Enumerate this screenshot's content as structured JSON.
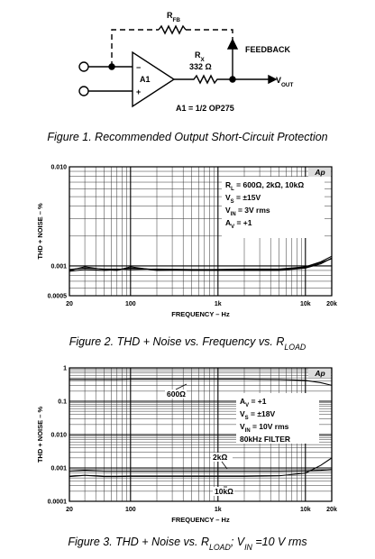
{
  "figure1": {
    "labels": {
      "rfb": [
        {
          "text": "R"
        },
        {
          "sub": "FB"
        }
      ],
      "rx": [
        {
          "text": "R"
        },
        {
          "sub": "X"
        }
      ],
      "rx_value": [
        {
          "text": "332 Ω"
        }
      ],
      "feedback": [
        {
          "text": "FEEDBACK"
        }
      ],
      "vout": [
        {
          "text": "V"
        },
        {
          "sub": "OUT"
        }
      ],
      "amp": [
        {
          "text": "A1"
        }
      ],
      "minus": [
        {
          "text": "−"
        }
      ],
      "plus": [
        {
          "text": "+"
        }
      ],
      "note": [
        {
          "text": "A1 = 1/2 OP275"
        }
      ]
    },
    "caption": [
      {
        "text": "Figure 1. Recommended Output Short-Circuit Protection"
      }
    ]
  },
  "chart_data": [
    {
      "type": "line",
      "title": [
        {
          "text": "Figure 2. THD + Noise vs. Frequency vs. R"
        },
        {
          "sub": "LOAD"
        }
      ],
      "xlabel": "FREQUENCY – Hz",
      "ylabel": "THD + NOISE – %",
      "logo": "Ap",
      "x_scale": "log",
      "y_scale": "log",
      "grid": true,
      "xlim": [
        20,
        20000
      ],
      "xticks": [
        20,
        100,
        {
          "value": 1000,
          "label": "1k"
        },
        {
          "value": 10000,
          "label": "10k"
        },
        {
          "value": 20000,
          "label": "20k"
        }
      ],
      "ylim": [
        0.0005,
        0.01
      ],
      "yticks": [
        {
          "value": 0.01,
          "label": "0.010"
        },
        0.001,
        0.0005
      ],
      "x": [
        20,
        30,
        50,
        70,
        100,
        200,
        500,
        1000,
        2000,
        5000,
        10000,
        15000,
        20000
      ],
      "series": [
        {
          "color": "#000000",
          "values": [
            0.00088,
            0.00092,
            0.0009,
            0.00092,
            0.00095,
            0.00092,
            0.0009,
            0.0009,
            0.0009,
            0.0009,
            0.00095,
            0.00105,
            0.0012
          ]
        },
        {
          "color": "#000000",
          "values": [
            0.00092,
            0.00095,
            0.00093,
            0.00093,
            0.00092,
            0.00093,
            0.00092,
            0.00092,
            0.00093,
            0.00093,
            0.00098,
            0.0011,
            0.00125
          ]
        },
        {
          "color": "#000000",
          "values": [
            0.0009,
            0.00098,
            0.00092,
            0.0009,
            0.00098,
            0.0009,
            0.00091,
            0.00092,
            0.00092,
            0.00092,
            0.00096,
            0.00108,
            0.00118
          ]
        }
      ],
      "annotations": [
        [
          {
            "text": "R"
          },
          {
            "sub": "L"
          },
          {
            "text": " = 600Ω, 2kΩ, 10kΩ"
          }
        ],
        [
          {
            "text": "V"
          },
          {
            "sub": "S"
          },
          {
            "text": " = ±15V"
          }
        ],
        [
          {
            "text": "V"
          },
          {
            "sub": "IN"
          },
          {
            "text": " = 3V rms"
          }
        ],
        [
          {
            "text": "A"
          },
          {
            "sub": "V"
          },
          {
            "text": " = +1"
          }
        ]
      ]
    },
    {
      "type": "line",
      "title": [
        {
          "text": "Figure 3. THD + Noise vs. R"
        },
        {
          "sub": "LOAD"
        },
        {
          "text": "; V"
        },
        {
          "sub": "IN"
        },
        {
          "text": " =10 V rms"
        }
      ],
      "xlabel": "FREQUENCY – Hz",
      "ylabel": "THD + NOISE – %",
      "logo": "Ap",
      "x_scale": "log",
      "y_scale": "log",
      "grid": true,
      "xlim": [
        20,
        20000
      ],
      "xticks": [
        20,
        100,
        {
          "value": 1000,
          "label": "1k"
        },
        {
          "value": 10000,
          "label": "10k"
        },
        {
          "value": 20000,
          "label": "20k"
        }
      ],
      "ylim": [
        0.0001,
        1
      ],
      "yticks": [
        1,
        0.1,
        {
          "value": 0.01,
          "label": "0.010"
        },
        0.001,
        0.0001
      ],
      "x": [
        20,
        30,
        50,
        70,
        100,
        200,
        500,
        1000,
        2000,
        5000,
        10000,
        15000,
        20000
      ],
      "series": [
        {
          "name": "600Ω",
          "color": "#000000",
          "values": [
            0.45,
            0.45,
            0.45,
            0.45,
            0.46,
            0.46,
            0.46,
            0.46,
            0.46,
            0.45,
            0.42,
            0.36,
            0.3
          ]
        },
        {
          "name": "2kΩ",
          "color": "#000000",
          "values": [
            0.0008,
            0.00085,
            0.0008,
            0.0008,
            0.0008,
            0.0008,
            0.0008,
            0.0008,
            0.0008,
            0.0008,
            0.00082,
            0.00085,
            0.0009
          ]
        },
        {
          "name": "10kΩ",
          "color": "#000000",
          "values": [
            0.00055,
            0.0006,
            0.00055,
            0.00055,
            0.00056,
            0.00056,
            0.00056,
            0.00056,
            0.00056,
            0.00058,
            0.0007,
            0.0012,
            0.002
          ]
        }
      ],
      "annotations": [
        [
          {
            "text": "A"
          },
          {
            "sub": "V"
          },
          {
            "text": " = +1"
          }
        ],
        [
          {
            "text": "V"
          },
          {
            "sub": "S"
          },
          {
            "text": " = ±18V"
          }
        ],
        [
          {
            "text": "V"
          },
          {
            "sub": "IN"
          },
          {
            "text": " = 10V rms"
          }
        ],
        [
          {
            "text": "80kHz FILTER"
          }
        ]
      ]
    }
  ]
}
